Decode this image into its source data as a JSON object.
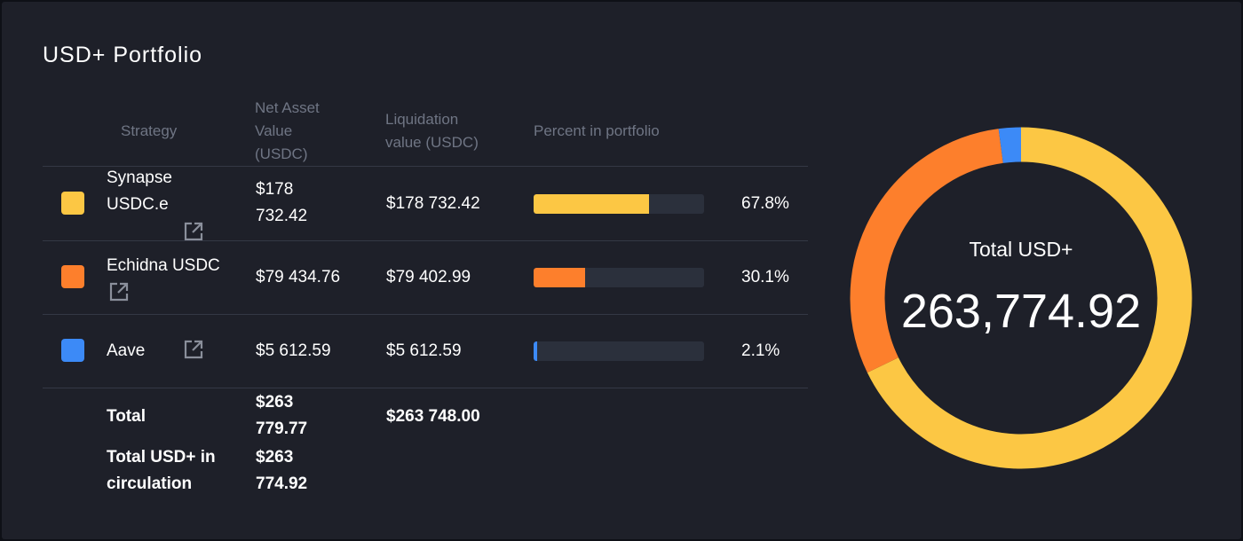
{
  "title": "USD+ Portfolio",
  "headers": {
    "strategy": "Strategy",
    "nav_1": "Net Asset",
    "nav_2": "Value",
    "nav_3": "(USDC)",
    "liq_1": "Liquidation",
    "liq_2": "value (USDC)",
    "percent": "Percent in portfolio"
  },
  "rows": [
    {
      "name_1": "Synapse",
      "name_2": "USDC.e",
      "nav_1": "$178",
      "nav_2": "732.42",
      "liquidation": "$178 732.42",
      "percent_label": "67.8%",
      "percent": 67.8,
      "color": "#fcc744",
      "icon": "external-link-icon"
    },
    {
      "name_1": "Echidna USDC",
      "nav_1": "$79 434.76",
      "liquidation": "$79 402.99",
      "percent_label": "30.1%",
      "percent": 30.1,
      "color": "#fd7f2c",
      "icon": "external-link-icon"
    },
    {
      "name_1": "Aave",
      "nav_1": "$5 612.59",
      "liquidation": "$5 612.59",
      "percent_label": "2.1%",
      "percent": 2.1,
      "color": "#3c8af7",
      "icon": "external-link-icon"
    }
  ],
  "totals": {
    "total_label": "Total",
    "total_nav_1": "$263",
    "total_nav_2": "779.77",
    "total_liquidation": "$263 748.00",
    "circ_label_1": "Total USD+ in",
    "circ_label_2": "circulation",
    "circ_nav_1": "$263",
    "circ_nav_2": "774.92"
  },
  "donut": {
    "label": "Total USD+",
    "value": "263,774.92"
  },
  "colors": {
    "panel": "#1e2029",
    "track": "#2b303c",
    "muted_text": "#6f7584"
  }
}
